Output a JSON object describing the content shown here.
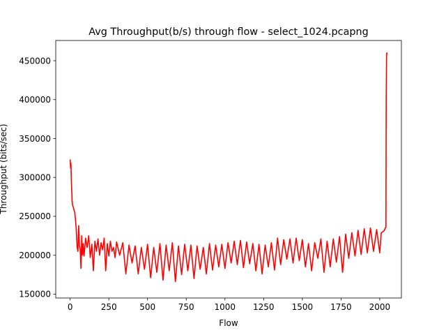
{
  "chart_data": {
    "type": "line",
    "title": "Avg Throughput(b/s) through flow - select_1024.pcapng",
    "xlabel": "Flow",
    "ylabel": "Throughput (bits/sec)",
    "xlim": [
      -93,
      2140
    ],
    "ylim": [
      145000,
      476000
    ],
    "x_ticks": [
      0,
      250,
      500,
      750,
      1000,
      1250,
      1500,
      1750,
      2000
    ],
    "x_tick_labels": [
      "0",
      "250",
      "500",
      "750",
      "1000",
      "1250",
      "1500",
      "1750",
      "2000"
    ],
    "y_ticks": [
      150000,
      200000,
      250000,
      300000,
      350000,
      400000,
      450000
    ],
    "y_tick_labels": [
      "150000",
      "200000",
      "250000",
      "300000",
      "350000",
      "400000",
      "450000"
    ],
    "grid": false,
    "series": [
      {
        "color": "#ff0000",
        "x": [
          0,
          3,
          5,
          8,
          10,
          13,
          15,
          20,
          25,
          30,
          35,
          40,
          45,
          50,
          55,
          60,
          65,
          70,
          75,
          80,
          85,
          90,
          100,
          110,
          120,
          130,
          140,
          150,
          160,
          170,
          180,
          190,
          200,
          210,
          220,
          230,
          240,
          250,
          260,
          270,
          280,
          290,
          300,
          320,
          340,
          360,
          380,
          400,
          420,
          440,
          460,
          480,
          500,
          520,
          540,
          560,
          580,
          600,
          620,
          640,
          660,
          680,
          700,
          720,
          740,
          760,
          780,
          800,
          820,
          840,
          860,
          880,
          900,
          920,
          940,
          960,
          980,
          1000,
          1020,
          1040,
          1060,
          1080,
          1100,
          1120,
          1140,
          1160,
          1180,
          1200,
          1220,
          1240,
          1260,
          1280,
          1300,
          1320,
          1340,
          1360,
          1380,
          1400,
          1420,
          1440,
          1460,
          1480,
          1500,
          1520,
          1540,
          1560,
          1580,
          1600,
          1620,
          1640,
          1660,
          1680,
          1700,
          1720,
          1740,
          1760,
          1780,
          1800,
          1820,
          1840,
          1860,
          1880,
          1900,
          1920,
          1940,
          1960,
          1980,
          2000,
          2010,
          2020,
          2030,
          2035,
          2040,
          2042,
          2044,
          2046,
          2048
        ],
        "y": [
          323000,
          312000,
          318000,
          296000,
          283000,
          270000,
          265000,
          262000,
          258000,
          255000,
          245000,
          232000,
          210000,
          205000,
          238000,
          212000,
          208000,
          183000,
          225000,
          200000,
          215000,
          199000,
          222000,
          210000,
          225000,
          197000,
          214000,
          180000,
          218000,
          205000,
          221000,
          200000,
          216000,
          207000,
          222000,
          180000,
          215000,
          199000,
          218000,
          205000,
          210000,
          197000,
          217000,
          200000,
          216000,
          176000,
          213000,
          190000,
          212000,
          176000,
          210000,
          182000,
          214000,
          171000,
          210000,
          178000,
          215000,
          168000,
          213000,
          180000,
          216000,
          166000,
          212000,
          175000,
          214000,
          180000,
          213000,
          170000,
          212000,
          182000,
          210000,
          176000,
          215000,
          181000,
          213000,
          185000,
          214000,
          183000,
          216000,
          190000,
          218000,
          188000,
          219000,
          184000,
          217000,
          189000,
          215000,
          180000,
          214000,
          176000,
          213000,
          185000,
          216000,
          181000,
          222000,
          188000,
          220000,
          195000,
          221000,
          190000,
          222000,
          193000,
          220000,
          185000,
          215000,
          180000,
          216000,
          196000,
          221000,
          178000,
          218000,
          185000,
          221000,
          191000,
          224000,
          178000,
          227000,
          196000,
          229000,
          199000,
          232000,
          201000,
          234000,
          203000,
          235000,
          205000,
          233000,
          203000,
          229000,
          230000,
          232000,
          235000,
          236000,
          400000,
          455000,
          460000,
          458000
        ]
      }
    ]
  }
}
